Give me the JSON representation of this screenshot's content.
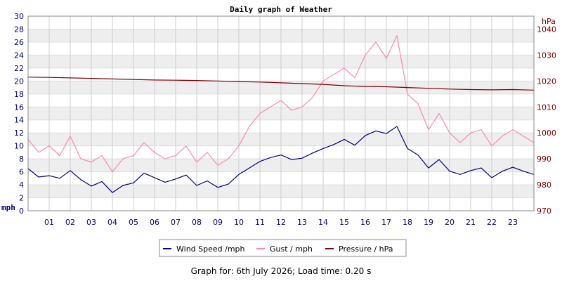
{
  "chart_data": {
    "type": "line",
    "title": "Daily graph of Weather",
    "y_left": {
      "unit_label": "mph",
      "min": 0,
      "max": 30,
      "step": 2,
      "ticks": [
        "0",
        "2",
        "4",
        "6",
        "8",
        "10",
        "12",
        "14",
        "16",
        "18",
        "20",
        "22",
        "24",
        "26",
        "28",
        "30"
      ]
    },
    "y_right": {
      "unit_label": "hPa",
      "min": 970,
      "max": 1045,
      "ticks": [
        "970",
        "980",
        "990",
        "1000",
        "1010",
        "1020",
        "1030",
        "1040"
      ]
    },
    "x": {
      "min": 0,
      "max": 24,
      "ticks": [
        "01",
        "02",
        "03",
        "04",
        "05",
        "06",
        "07",
        "08",
        "09",
        "10",
        "11",
        "12",
        "13",
        "14",
        "15",
        "16",
        "17",
        "18",
        "19",
        "20",
        "21",
        "22",
        "23"
      ]
    },
    "grid": true,
    "legend_position": "bottom",
    "series": [
      {
        "name": "Wind Speed /mph",
        "axis": "left",
        "color": "#000080",
        "x": [
          0,
          0.5,
          1,
          1.5,
          2,
          2.5,
          3,
          3.5,
          4,
          4.5,
          5,
          5.5,
          6,
          6.5,
          7,
          7.5,
          8,
          8.5,
          9,
          9.5,
          10,
          10.5,
          11,
          11.5,
          12,
          12.5,
          13,
          13.5,
          14,
          14.5,
          15,
          15.5,
          16,
          16.5,
          17,
          17.5,
          18,
          18.5,
          19,
          19.5,
          20,
          20.5,
          21,
          21.5,
          22,
          22.5,
          23,
          23.5,
          24
        ],
        "values": [
          6.5,
          5.2,
          5.4,
          5.0,
          6.2,
          4.8,
          3.8,
          4.5,
          2.8,
          3.9,
          4.3,
          5.8,
          5.1,
          4.4,
          4.9,
          5.5,
          3.9,
          4.6,
          3.6,
          4.1,
          5.6,
          6.6,
          7.6,
          8.2,
          8.6,
          7.9,
          8.1,
          8.9,
          9.6,
          10.2,
          11.0,
          10.1,
          11.6,
          12.3,
          11.9,
          13.0,
          9.6,
          8.6,
          6.6,
          7.9,
          6.1,
          5.6,
          6.2,
          6.6,
          5.1,
          6.1,
          6.7,
          6.1,
          5.6
        ]
      },
      {
        "name": "Gust / mph",
        "axis": "left",
        "color": "#ff88aa",
        "x": [
          0,
          0.5,
          1,
          1.5,
          2,
          2.5,
          3,
          3.5,
          4,
          4.5,
          5,
          5.5,
          6,
          6.5,
          7,
          7.5,
          8,
          8.5,
          9,
          9.5,
          10,
          10.5,
          11,
          11.5,
          12,
          12.5,
          13,
          13.5,
          14,
          14.5,
          15,
          15.5,
          16,
          16.5,
          17,
          17.5,
          18,
          18.5,
          19,
          19.5,
          20,
          20.5,
          21,
          21.5,
          22,
          22.5,
          23,
          23.5,
          24
        ],
        "values": [
          11.0,
          9.0,
          10.0,
          8.5,
          11.5,
          8.0,
          7.5,
          8.5,
          6.0,
          8.0,
          8.5,
          10.5,
          9.0,
          8.0,
          8.5,
          10.0,
          7.5,
          9.0,
          7.0,
          8.0,
          10.0,
          13.0,
          15.0,
          16.0,
          17.0,
          15.5,
          16.0,
          17.5,
          20.0,
          21.0,
          22.0,
          20.5,
          24.0,
          26.0,
          23.5,
          27.0,
          18.0,
          16.5,
          12.5,
          15.0,
          12.0,
          10.5,
          12.0,
          12.5,
          10.0,
          11.5,
          12.5,
          11.5,
          10.5
        ]
      },
      {
        "name": "Pressure / hPa",
        "axis": "right",
        "color": "#800000",
        "x": [
          0,
          1,
          2,
          3,
          4,
          5,
          6,
          7,
          8,
          9,
          10,
          11,
          12,
          13,
          14,
          15,
          16,
          17,
          18,
          19,
          20,
          21,
          22,
          23,
          24
        ],
        "values": [
          1021.5,
          1021.4,
          1021.2,
          1021.0,
          1020.8,
          1020.6,
          1020.4,
          1020.3,
          1020.2,
          1020.0,
          1019.8,
          1019.6,
          1019.3,
          1019.0,
          1018.7,
          1018.2,
          1017.9,
          1017.8,
          1017.5,
          1017.2,
          1016.9,
          1016.7,
          1016.6,
          1016.7,
          1016.5
        ]
      }
    ]
  },
  "footer": {
    "text": "Graph for: 6th July 2026; Load time: 0.20 s"
  }
}
